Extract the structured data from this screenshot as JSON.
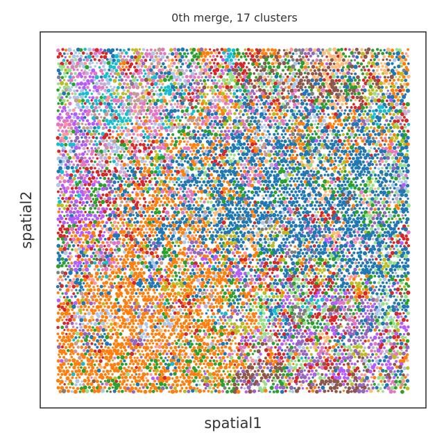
{
  "chart_data": {
    "type": "scatter",
    "title": "0th merge, 17 clusters",
    "xlabel": "spatial1",
    "ylabel": "spatial2",
    "xlim": [
      0,
      1
    ],
    "ylim": [
      0,
      1
    ],
    "grid": false,
    "legend": "none",
    "cluster_count": 17,
    "point_count_approx": 9000,
    "clusters": [
      {
        "id": 0,
        "color": "#1f77b4",
        "region": "center and right"
      },
      {
        "id": 1,
        "color": "#ff7f0e",
        "region": "lower-left and center-left"
      },
      {
        "id": 2,
        "color": "#2ca02c",
        "region": "scattered"
      },
      {
        "id": 3,
        "color": "#d62728",
        "region": "upper-left and lower-right"
      },
      {
        "id": 4,
        "color": "#9467bd",
        "region": "lower-right"
      },
      {
        "id": 5,
        "color": "#8c564b",
        "region": "top-right and bottom-center"
      },
      {
        "id": 6,
        "color": "#e377c2",
        "region": "upper-left"
      },
      {
        "id": 7,
        "color": "#7f7f7f",
        "region": "scattered"
      },
      {
        "id": 8,
        "color": "#bcbd22",
        "region": "scattered"
      },
      {
        "id": 9,
        "color": "#17becf",
        "region": "upper-left"
      },
      {
        "id": 10,
        "color": "#aec7e8",
        "region": "scattered"
      },
      {
        "id": 11,
        "color": "#ffbb78",
        "region": "top-right"
      },
      {
        "id": 12,
        "color": "#98df8a",
        "region": "right"
      },
      {
        "id": 13,
        "color": "#ff9896",
        "region": "upper-left"
      },
      {
        "id": 14,
        "color": "#c5b0d5",
        "region": "upper-left"
      },
      {
        "id": 15,
        "color": "#c49c94",
        "region": "upper-left"
      },
      {
        "id": 16,
        "color": "#b55cff",
        "region": "left and lower-right"
      }
    ]
  }
}
